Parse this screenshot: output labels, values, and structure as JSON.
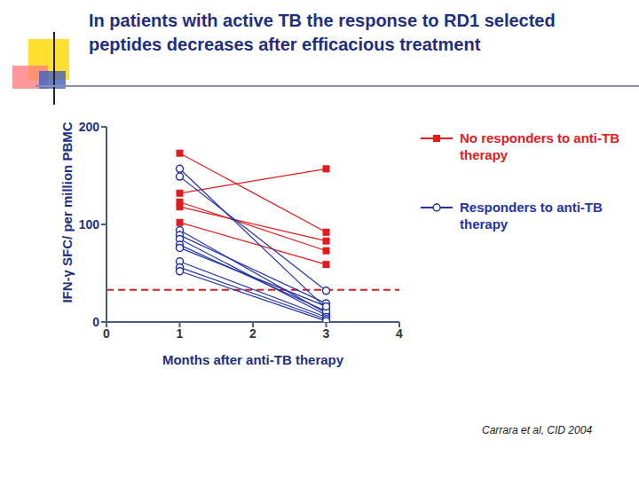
{
  "chart_data": {
    "type": "line",
    "title": "In patients with active TB the response to RD1 selected peptides decreases after efficacious treatment",
    "x_label": "Months after anti-TB therapy",
    "y_label": "IFN-γ SFC/ per million PBMC",
    "x": [
      1,
      3
    ],
    "xlim": [
      0,
      4
    ],
    "xticks": [
      0,
      1,
      2,
      3,
      4
    ],
    "ylim": [
      0,
      200
    ],
    "yticks": [
      0,
      100,
      200
    ],
    "legend": "right",
    "series": [
      {
        "name": "No responders to anti-TB therapy",
        "color": "#e41a1c",
        "marker": "square",
        "line_style": "solid",
        "values": [
          [
            173,
            92
          ],
          [
            132,
            157
          ],
          [
            118,
            83
          ],
          [
            123,
            73
          ],
          [
            102,
            59
          ]
        ]
      },
      {
        "name": "Responders to anti-TB therapy",
        "color": "#2233aa",
        "marker": "circle_open",
        "line_style": "solid",
        "values": [
          [
            157,
            14
          ],
          [
            149,
            32
          ],
          [
            94,
            9
          ],
          [
            89,
            19
          ],
          [
            85,
            7
          ],
          [
            79,
            11
          ],
          [
            76,
            16
          ],
          [
            62,
            5
          ],
          [
            56,
            3
          ],
          [
            52,
            1
          ]
        ]
      }
    ],
    "reference_line": {
      "y": 33,
      "color": "#e41a1c",
      "line_style": "dashed"
    },
    "source": "Carrara et al, CID 2004"
  }
}
